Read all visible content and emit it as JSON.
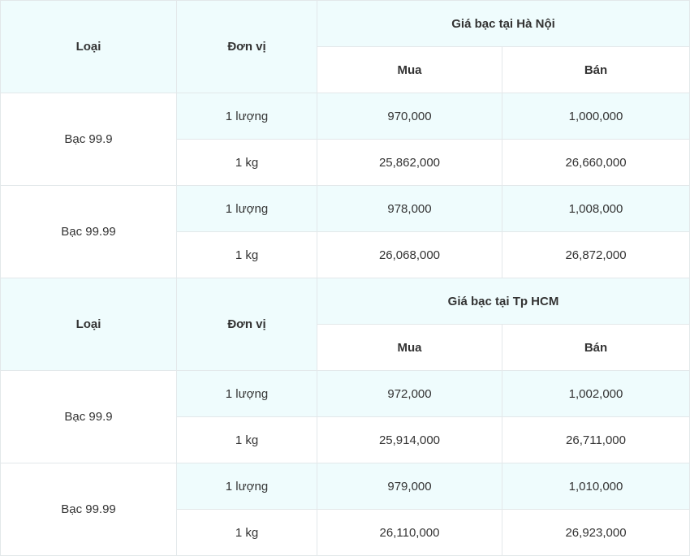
{
  "sections": [
    {
      "headers": {
        "type": "Loại",
        "unit": "Đơn vị",
        "title": "Giá bạc tại Hà Nội",
        "buy": "Mua",
        "sell": "Bán"
      },
      "groups": [
        {
          "name": "Bạc 99.9",
          "rows": [
            {
              "unit": "1 lượng",
              "buy": "970,000",
              "sell": "1,000,000"
            },
            {
              "unit": "1 kg",
              "buy": "25,862,000",
              "sell": "26,660,000"
            }
          ]
        },
        {
          "name": "Bạc 99.99",
          "rows": [
            {
              "unit": "1 lượng",
              "buy": "978,000",
              "sell": "1,008,000"
            },
            {
              "unit": "1 kg",
              "buy": "26,068,000",
              "sell": "26,872,000"
            }
          ]
        }
      ]
    },
    {
      "headers": {
        "type": "Loại",
        "unit": "Đơn vị",
        "title": "Giá bạc tại Tp HCM",
        "buy": "Mua",
        "sell": "Bán"
      },
      "groups": [
        {
          "name": "Bạc 99.9",
          "rows": [
            {
              "unit": "1 lượng",
              "buy": "972,000",
              "sell": "1,002,000"
            },
            {
              "unit": "1 kg",
              "buy": "25,914,000",
              "sell": "26,711,000"
            }
          ]
        },
        {
          "name": "Bạc 99.99",
          "rows": [
            {
              "unit": "1 lượng",
              "buy": "979,000",
              "sell": "1,010,000"
            },
            {
              "unit": "1 kg",
              "buy": "26,110,000",
              "sell": "26,923,000"
            }
          ]
        }
      ]
    }
  ],
  "colors": {
    "header_bg": "#effcfd",
    "border": "#e3e8ea",
    "text": "#333333"
  }
}
